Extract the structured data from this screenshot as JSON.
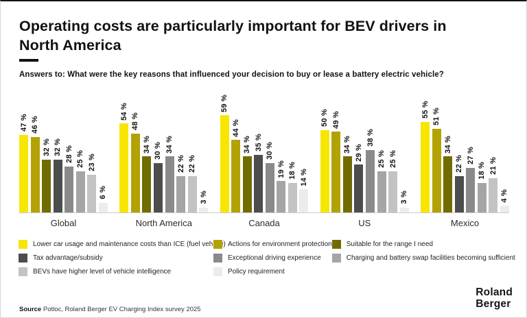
{
  "chart_data": {
    "type": "bar",
    "title": "Operating costs are particularly important for BEV drivers in North America",
    "subtitle": "Answers to: What were the key reasons that influenced your decision to buy or lease a battery electric vehicle?",
    "groups": [
      "Global",
      "North America",
      "Canada",
      "US",
      "Mexico"
    ],
    "series": [
      {
        "name": "Lower car usage and maintenance costs than ICE (fuel vehicle)",
        "color": "#F7E600",
        "values": [
          47,
          54,
          59,
          50,
          55
        ]
      },
      {
        "name": "Actions for environment protection",
        "color": "#B2A204",
        "values": [
          46,
          48,
          44,
          49,
          51
        ]
      },
      {
        "name": "Suitable for the range I need",
        "color": "#716C00",
        "values": [
          32,
          34,
          34,
          34,
          34
        ]
      },
      {
        "name": "Tax advantage/subsidy",
        "color": "#4D4D4D",
        "values": [
          32,
          30,
          35,
          29,
          22
        ]
      },
      {
        "name": "Exceptional driving experience",
        "color": "#8A8A8A",
        "values": [
          28,
          34,
          30,
          38,
          27
        ]
      },
      {
        "name": "Charging and battery swap facilities becoming sufficient",
        "color": "#A5A5A5",
        "values": [
          25,
          22,
          19,
          25,
          18
        ]
      },
      {
        "name": "BEVs have higher level of vehicle intelligence",
        "color": "#C3C3C3",
        "values": [
          23,
          22,
          18,
          25,
          21
        ]
      },
      {
        "name": "Policy requirement",
        "color": "#ECECEC",
        "values": [
          6,
          3,
          14,
          3,
          4
        ]
      }
    ],
    "value_label_suffix": " %",
    "ylim": [
      0,
      60
    ],
    "grid": false,
    "legend_position": "bottom",
    "legend_columns": [
      [
        0,
        3,
        6
      ],
      [
        1,
        4,
        7
      ],
      [
        2,
        5
      ]
    ]
  },
  "footer": {
    "source_label": "Source",
    "source_text": " Potloc, Roland Berger EV Charging Index survey 2025"
  },
  "brand": {
    "line1": "Roland",
    "line2": "Berger"
  }
}
